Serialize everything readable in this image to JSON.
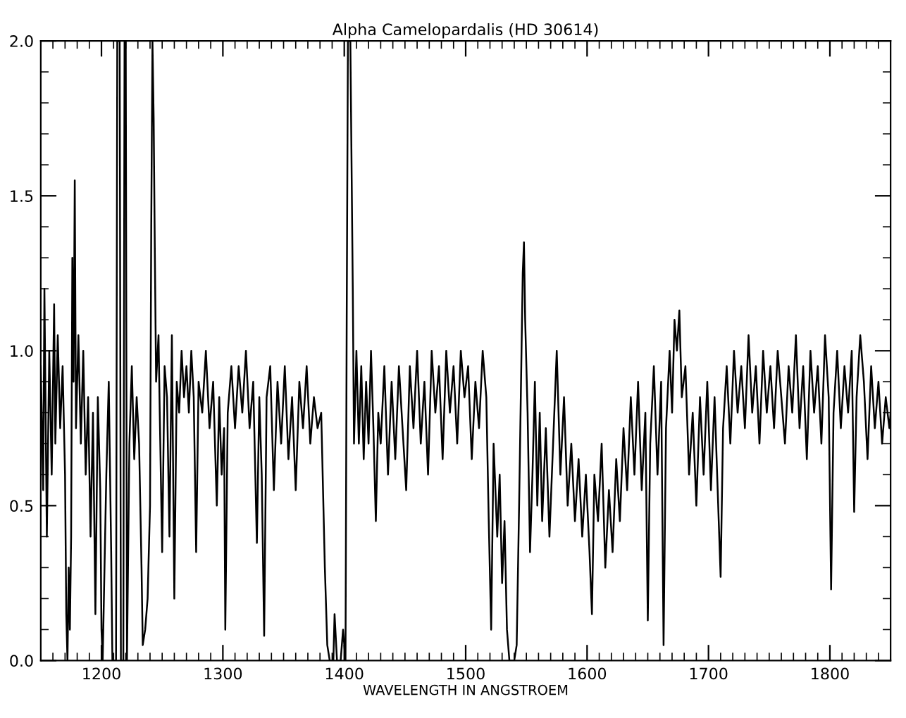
{
  "chart_data": {
    "type": "line",
    "title": "Alpha Camelopardalis (HD 30614)",
    "xlabel": "WAVELENGTH IN ANGSTROEM",
    "xlim": [
      1150,
      1850
    ],
    "xticks": [
      1200,
      1300,
      1400,
      1500,
      1600,
      1700,
      1800
    ],
    "ylim": [
      0,
      2.0
    ],
    "yticks": [
      {
        "value": 0,
        "label": "0.0"
      },
      {
        "value": 0.5,
        "label": "0.5"
      },
      {
        "value": 1.0,
        "label": "1.0"
      },
      {
        "value": 1.5,
        "label": "1.5"
      },
      {
        "value": 2.0,
        "label": "2.0"
      }
    ],
    "grid": false,
    "marker": "none",
    "line_style": "solid",
    "series": [
      {
        "color": "#000000",
        "x": [
          1150,
          1152,
          1153,
          1155,
          1157,
          1159,
          1161,
          1162,
          1164,
          1166,
          1168,
          1170,
          1171,
          1172,
          1173,
          1174,
          1175,
          1176,
          1177,
          1178,
          1179,
          1181,
          1183,
          1185,
          1187,
          1189,
          1191,
          1193,
          1195,
          1197,
          1199,
          1200,
          1201,
          1202,
          1204,
          1206,
          1208,
          1209,
          1212,
          1213,
          1215,
          1216,
          1218,
          1219,
          1220,
          1221,
          1223,
          1225,
          1227,
          1229,
          1231,
          1233,
          1234,
          1236,
          1238,
          1240,
          1241,
          1242,
          1243,
          1244,
          1245,
          1247,
          1248,
          1250,
          1252,
          1254,
          1256,
          1258,
          1260,
          1262,
          1264,
          1266,
          1268,
          1270,
          1272,
          1274,
          1276,
          1278,
          1280,
          1283,
          1286,
          1289,
          1292,
          1295,
          1297,
          1299,
          1301,
          1302,
          1304,
          1307,
          1310,
          1313,
          1316,
          1319,
          1322,
          1325,
          1328,
          1330,
          1332,
          1334,
          1336,
          1339,
          1342,
          1345,
          1348,
          1351,
          1354,
          1357,
          1360,
          1363,
          1366,
          1369,
          1372,
          1375,
          1378,
          1381,
          1384,
          1386,
          1388,
          1391,
          1392,
          1394,
          1397,
          1399,
          1401,
          1402,
          1403,
          1405,
          1406,
          1407,
          1408,
          1410,
          1412,
          1414,
          1416,
          1418,
          1420,
          1422,
          1424,
          1426,
          1428,
          1430,
          1433,
          1436,
          1439,
          1442,
          1445,
          1448,
          1451,
          1454,
          1457,
          1460,
          1463,
          1466,
          1469,
          1472,
          1475,
          1478,
          1481,
          1484,
          1487,
          1490,
          1493,
          1496,
          1499,
          1502,
          1505,
          1508,
          1511,
          1514,
          1517,
          1519,
          1521,
          1523,
          1526,
          1528,
          1530,
          1532,
          1534,
          1536,
          1540,
          1542,
          1544,
          1546,
          1547,
          1548,
          1549,
          1551,
          1553,
          1555,
          1557,
          1559,
          1561,
          1563,
          1566,
          1569,
          1572,
          1575,
          1578,
          1581,
          1584,
          1587,
          1590,
          1593,
          1596,
          1599,
          1602,
          1604,
          1606,
          1609,
          1612,
          1615,
          1618,
          1621,
          1624,
          1627,
          1630,
          1633,
          1636,
          1639,
          1642,
          1645,
          1648,
          1650,
          1652,
          1655,
          1658,
          1661,
          1663,
          1665,
          1668,
          1670,
          1672,
          1674,
          1676,
          1678,
          1681,
          1684,
          1687,
          1690,
          1693,
          1696,
          1699,
          1702,
          1705,
          1708,
          1710,
          1712,
          1715,
          1718,
          1721,
          1724,
          1727,
          1730,
          1733,
          1736,
          1739,
          1742,
          1745,
          1748,
          1751,
          1754,
          1757,
          1760,
          1763,
          1766,
          1769,
          1772,
          1775,
          1778,
          1781,
          1784,
          1787,
          1790,
          1793,
          1796,
          1799,
          1801,
          1803,
          1806,
          1809,
          1812,
          1815,
          1818,
          1820,
          1822,
          1825,
          1828,
          1831,
          1834,
          1837,
          1840,
          1843,
          1846,
          1849,
          1850
        ],
        "values": [
          0.95,
          0.55,
          1.2,
          0.4,
          1.0,
          0.6,
          1.15,
          0.7,
          1.05,
          0.75,
          0.95,
          0.6,
          0.15,
          0.0,
          0.3,
          0.1,
          0.4,
          1.3,
          0.9,
          1.55,
          0.75,
          1.05,
          0.7,
          1.0,
          0.6,
          0.85,
          0.4,
          0.8,
          0.15,
          0.85,
          0.55,
          0.1,
          0.0,
          0.2,
          0.6,
          0.9,
          0.35,
          0.0,
          0.0,
          2.0,
          2.0,
          0.0,
          0.0,
          2.0,
          2.0,
          0.0,
          0.7,
          0.95,
          0.65,
          0.85,
          0.7,
          0.3,
          0.05,
          0.1,
          0.2,
          0.5,
          1.4,
          2.0,
          1.75,
          1.3,
          0.9,
          1.05,
          0.8,
          0.35,
          0.95,
          0.85,
          0.4,
          1.05,
          0.2,
          0.9,
          0.8,
          1.0,
          0.85,
          0.95,
          0.8,
          1.0,
          0.85,
          0.35,
          0.9,
          0.8,
          1.0,
          0.75,
          0.9,
          0.5,
          0.85,
          0.6,
          0.75,
          0.1,
          0.8,
          0.95,
          0.75,
          0.95,
          0.8,
          1.0,
          0.75,
          0.9,
          0.38,
          0.85,
          0.6,
          0.08,
          0.85,
          0.95,
          0.55,
          0.9,
          0.7,
          0.95,
          0.65,
          0.85,
          0.55,
          0.9,
          0.75,
          0.95,
          0.7,
          0.85,
          0.75,
          0.8,
          0.3,
          0.05,
          0.0,
          0.0,
          0.15,
          0.0,
          0.0,
          0.1,
          0.0,
          1.1,
          2.0,
          2.0,
          1.6,
          1.2,
          0.7,
          1.0,
          0.7,
          0.95,
          0.65,
          0.9,
          0.7,
          1.0,
          0.75,
          0.45,
          0.8,
          0.7,
          0.95,
          0.6,
          0.9,
          0.65,
          0.95,
          0.75,
          0.55,
          0.95,
          0.75,
          1.0,
          0.7,
          0.9,
          0.6,
          1.0,
          0.8,
          0.95,
          0.65,
          1.0,
          0.8,
          0.95,
          0.7,
          1.0,
          0.85,
          0.95,
          0.65,
          0.9,
          0.75,
          1.0,
          0.85,
          0.45,
          0.1,
          0.7,
          0.4,
          0.6,
          0.25,
          0.45,
          0.1,
          0.0,
          0.0,
          0.05,
          0.5,
          1.0,
          1.25,
          1.35,
          1.1,
          0.8,
          0.35,
          0.6,
          0.9,
          0.5,
          0.8,
          0.45,
          0.75,
          0.4,
          0.7,
          1.0,
          0.6,
          0.85,
          0.5,
          0.7,
          0.45,
          0.65,
          0.4,
          0.6,
          0.35,
          0.15,
          0.6,
          0.45,
          0.7,
          0.3,
          0.55,
          0.35,
          0.65,
          0.45,
          0.75,
          0.55,
          0.85,
          0.6,
          0.9,
          0.55,
          0.8,
          0.13,
          0.7,
          0.95,
          0.6,
          0.9,
          0.05,
          0.75,
          1.0,
          0.8,
          1.1,
          1.0,
          1.13,
          0.85,
          0.95,
          0.6,
          0.8,
          0.5,
          0.85,
          0.6,
          0.9,
          0.55,
          0.85,
          0.5,
          0.27,
          0.75,
          0.95,
          0.7,
          1.0,
          0.8,
          0.95,
          0.75,
          1.05,
          0.8,
          0.95,
          0.7,
          1.0,
          0.8,
          0.95,
          0.75,
          1.0,
          0.85,
          0.7,
          0.95,
          0.8,
          1.05,
          0.75,
          0.95,
          0.65,
          1.0,
          0.8,
          0.95,
          0.7,
          1.05,
          0.85,
          0.23,
          0.8,
          1.0,
          0.75,
          0.95,
          0.8,
          1.0,
          0.48,
          0.85,
          1.05,
          0.9,
          0.65,
          0.95,
          0.75,
          0.9,
          0.7,
          0.85,
          0.75,
          0.8
        ]
      }
    ]
  }
}
